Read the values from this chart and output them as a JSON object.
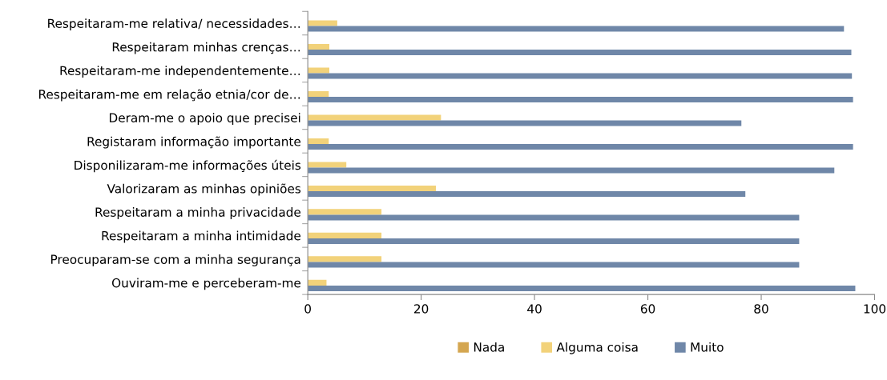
{
  "chart_data": {
    "type": "bar",
    "orientation": "horizontal",
    "legend": "bottom",
    "grid": false,
    "categories": [
      "Respeitaram-me relativa/ necessidades…",
      "Respeitaram minhas crenças…",
      "Respeitaram-me independentemente…",
      "Respeitaram-me em relação etnia/cor de…",
      "Deram-me o apoio que precisei",
      "Registaram informação importante",
      "Disponilizaram-me informações úteis",
      "Valorizaram as minhas opiniões",
      "Respeitaram a minha privacidade",
      "Respeitaram a minha intimidade",
      "Preocuparam-se com a minha segurança",
      "Ouviram-me e perceberam-me"
    ],
    "series": [
      {
        "name": "Nada",
        "color": "#d4a650",
        "values": [
          0,
          0,
          0,
          0,
          0,
          0,
          0,
          0,
          0,
          0,
          0,
          0
        ]
      },
      {
        "name": "Alguma coisa",
        "color": "#f2d27a",
        "values": [
          5.2,
          3.8,
          3.8,
          3.7,
          23.5,
          3.7,
          6.8,
          22.6,
          13,
          13,
          13,
          3.3
        ]
      },
      {
        "name": "Muito",
        "color": "#6f87a8",
        "values": [
          94.6,
          95.9,
          96,
          96.2,
          76.5,
          96.2,
          92.9,
          77.2,
          86.7,
          86.7,
          86.7,
          96.6
        ]
      }
    ],
    "xlim": [
      0,
      100
    ],
    "xticks": [
      0,
      20,
      40,
      60,
      80,
      100
    ]
  }
}
